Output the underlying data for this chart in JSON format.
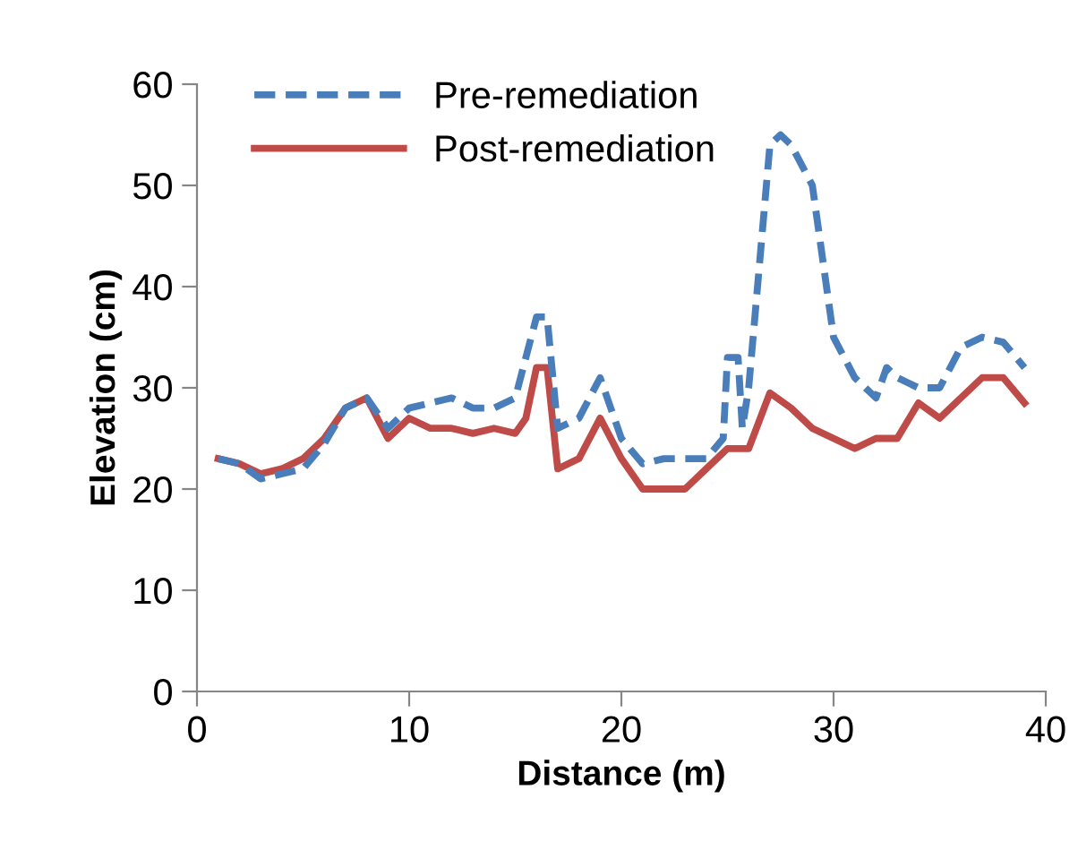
{
  "chart_data": {
    "type": "line",
    "xlabel": "Distance (m)",
    "ylabel": "Elevation (cm)",
    "xlim": [
      0,
      40
    ],
    "xticks": [
      0,
      10,
      20,
      30,
      40
    ],
    "ylim": [
      0,
      60
    ],
    "yticks": [
      0,
      10,
      20,
      30,
      40,
      50,
      60
    ],
    "grid": false,
    "legend": "top left",
    "marker": "none",
    "series": [
      {
        "name": "Pre-remediation",
        "color": "#4a7ebb",
        "line_style": "dashed",
        "x": [
          1,
          2,
          3,
          4,
          5,
          6,
          7,
          8,
          9,
          10,
          11,
          12,
          13,
          14,
          15,
          16,
          16.5,
          17,
          18,
          19,
          20,
          21,
          22,
          23,
          24,
          24.8,
          25,
          25.5,
          25.7,
          26,
          27,
          27.5,
          28,
          29,
          30,
          31,
          32,
          32.5,
          33,
          34,
          35,
          36,
          37,
          38,
          39
        ],
        "values": [
          23,
          22.5,
          21,
          21.5,
          22,
          24.5,
          28,
          29,
          26,
          28,
          28.5,
          29,
          28,
          28,
          29,
          37,
          37,
          26,
          27,
          31,
          25,
          22.5,
          23,
          23,
          23,
          25,
          33,
          33,
          26,
          30,
          54,
          55,
          54,
          50,
          35,
          31,
          29,
          32,
          31,
          30,
          30,
          34,
          35,
          34.5,
          32
        ]
      },
      {
        "name": "Post-remediation",
        "color": "#be4b48",
        "line_style": "solid",
        "x": [
          1,
          2,
          3,
          4,
          5,
          6,
          7,
          8,
          9,
          10,
          11,
          12,
          13,
          14,
          15,
          15.5,
          16,
          16.5,
          17,
          18,
          19,
          20,
          21,
          22,
          23,
          24,
          25,
          26,
          27,
          28,
          29,
          30,
          31,
          32,
          33,
          34,
          35,
          36,
          37,
          38,
          39
        ],
        "values": [
          23,
          22.5,
          21.5,
          22,
          23,
          25,
          28,
          29,
          25,
          27,
          26,
          26,
          25.5,
          26,
          25.5,
          27,
          32,
          32,
          22,
          23,
          27,
          23,
          20,
          20,
          20,
          22,
          24,
          24,
          29.5,
          28,
          26,
          25,
          24,
          25,
          25,
          28.5,
          27,
          29,
          31,
          31,
          28.5
        ]
      }
    ]
  }
}
